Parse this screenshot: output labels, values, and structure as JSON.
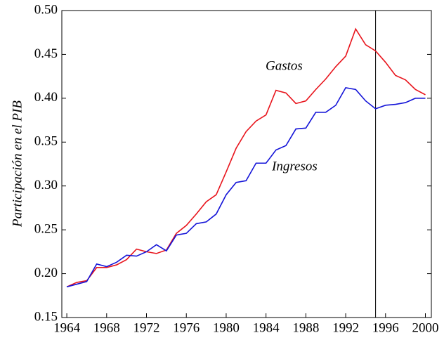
{
  "chart_data": {
    "type": "line",
    "y_label": "Participación en el PIB",
    "x": [
      1964,
      1965,
      1966,
      1967,
      1968,
      1969,
      1970,
      1971,
      1972,
      1973,
      1974,
      1975,
      1976,
      1977,
      1978,
      1979,
      1980,
      1981,
      1982,
      1983,
      1984,
      1985,
      1986,
      1987,
      1988,
      1989,
      1990,
      1991,
      1992,
      1993,
      1994,
      1995,
      1996,
      1997,
      1998,
      1999,
      2000
    ],
    "series": [
      {
        "name": "Gastos",
        "color": "#e8141c",
        "values": [
          0.185,
          0.19,
          0.192,
          0.207,
          0.207,
          0.21,
          0.216,
          0.228,
          0.225,
          0.223,
          0.227,
          0.246,
          0.255,
          0.268,
          0.282,
          0.29,
          0.316,
          0.343,
          0.362,
          0.374,
          0.381,
          0.409,
          0.406,
          0.394,
          0.397,
          0.41,
          0.422,
          0.436,
          0.448,
          0.479,
          0.461,
          0.454,
          0.441,
          0.426,
          0.421,
          0.41,
          0.404
        ]
      },
      {
        "name": "Ingresos",
        "color": "#1414d8",
        "values": [
          0.185,
          0.188,
          0.191,
          0.211,
          0.208,
          0.213,
          0.221,
          0.22,
          0.225,
          0.233,
          0.226,
          0.244,
          0.246,
          0.257,
          0.259,
          0.268,
          0.29,
          0.304,
          0.306,
          0.326,
          0.326,
          0.341,
          0.346,
          0.365,
          0.366,
          0.384,
          0.384,
          0.392,
          0.412,
          0.41,
          0.397,
          0.388,
          0.392,
          0.393,
          0.395,
          0.4,
          0.4
        ]
      }
    ],
    "xlim": [
      1963.5,
      2000.6
    ],
    "ylim": [
      0.15,
      0.5
    ],
    "xticks": [
      1964,
      1968,
      1972,
      1976,
      1980,
      1984,
      1988,
      1992,
      1996,
      2000
    ],
    "yticks": [
      {
        "value": 0.15,
        "label": "0.15"
      },
      {
        "value": 0.2,
        "label": "0.20"
      },
      {
        "value": 0.25,
        "label": "0.25"
      },
      {
        "value": 0.3,
        "label": "0.30"
      },
      {
        "value": 0.35,
        "label": "0.35"
      },
      {
        "value": 0.4,
        "label": "0.40"
      },
      {
        "value": 0.45,
        "label": "0.45"
      },
      {
        "value": 0.5,
        "label": "0.50"
      }
    ],
    "vline": 1995
  }
}
